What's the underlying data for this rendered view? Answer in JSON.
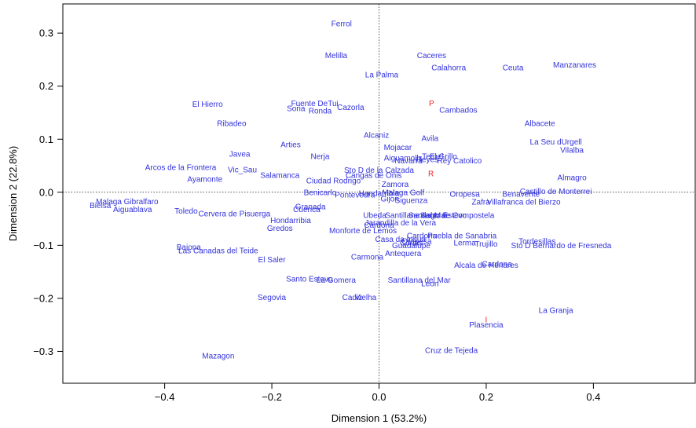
{
  "chart_data": {
    "type": "scatter",
    "xlabel": "Dimension 1 (53.2%)",
    "ylabel": "Dimension 2 (22.8%)",
    "xlim": [
      -0.59,
      0.59
    ],
    "ylim": [
      -0.36,
      0.355
    ],
    "x_ticks": [
      -0.4,
      -0.2,
      0.0,
      0.2,
      0.4
    ],
    "x_tick_labels": [
      "−0.4",
      "−0.2",
      "0.0",
      "0.2",
      "0.4"
    ],
    "y_ticks": [
      -0.3,
      -0.2,
      -0.1,
      0.0,
      0.1,
      0.2,
      0.3
    ],
    "y_tick_labels": [
      "−0.3",
      "−0.2",
      "−0.1",
      "0.0",
      "0.1",
      "0.2",
      "0.3"
    ],
    "reference_lines": [
      {
        "axis": "x",
        "value": 0
      },
      {
        "axis": "y",
        "value": 0
      }
    ],
    "colors": {
      "places": "#3333dd",
      "categories": "#ee2222",
      "axes": "#000000",
      "reference": "#555555"
    },
    "grid": false,
    "legend": "none",
    "series": [
      {
        "color": "#3333dd",
        "points": [
          {
            "label": "Ferrol",
            "x": -0.07,
            "y": 0.318
          },
          {
            "label": "Melilla",
            "x": -0.08,
            "y": 0.258
          },
          {
            "label": "Caceres",
            "x": 0.098,
            "y": 0.258
          },
          {
            "label": "Calahorra",
            "x": 0.13,
            "y": 0.235
          },
          {
            "label": "Ceuta",
            "x": 0.25,
            "y": 0.235
          },
          {
            "label": "Manzanares",
            "x": 0.365,
            "y": 0.24
          },
          {
            "label": "La Palma",
            "x": 0.005,
            "y": 0.222
          },
          {
            "label": "El Hierro",
            "x": -0.32,
            "y": 0.166
          },
          {
            "label": "Fuente DeTui",
            "x": -0.12,
            "y": 0.168
          },
          {
            "label": "Soria",
            "x": -0.155,
            "y": 0.158
          },
          {
            "label": "Ronda",
            "x": -0.11,
            "y": 0.154
          },
          {
            "label": "Cazorla",
            "x": -0.053,
            "y": 0.16
          },
          {
            "label": "Cambados",
            "x": 0.148,
            "y": 0.155
          },
          {
            "label": "Ribadeo",
            "x": -0.275,
            "y": 0.13
          },
          {
            "label": "Albacete",
            "x": 0.3,
            "y": 0.13
          },
          {
            "label": "Alcaniz",
            "x": -0.005,
            "y": 0.108
          },
          {
            "label": "Avila",
            "x": 0.095,
            "y": 0.102
          },
          {
            "label": "La Seu dUrgell",
            "x": 0.33,
            "y": 0.095
          },
          {
            "label": "Arties",
            "x": -0.165,
            "y": 0.09
          },
          {
            "label": "Mojacar",
            "x": 0.035,
            "y": 0.085
          },
          {
            "label": "Vilalba",
            "x": 0.36,
            "y": 0.08
          },
          {
            "label": "Javea",
            "x": -0.26,
            "y": 0.072
          },
          {
            "label": "Nerja",
            "x": -0.11,
            "y": 0.068
          },
          {
            "label": "Aiguamolls",
            "x": 0.045,
            "y": 0.065
          },
          {
            "label": "Teruel",
            "x": 0.1,
            "y": 0.068
          },
          {
            "label": "El Grillo",
            "x": 0.12,
            "y": 0.068
          },
          {
            "label": "Reyes",
            "x": 0.09,
            "y": 0.062
          },
          {
            "label": "Navarra",
            "x": 0.055,
            "y": 0.06
          },
          {
            "label": "Rey Catolico",
            "x": 0.15,
            "y": 0.06
          },
          {
            "label": "Arcos de la Frontera",
            "x": -0.37,
            "y": 0.047
          },
          {
            "label": "Vic_Sau",
            "x": -0.255,
            "y": 0.043
          },
          {
            "label": "Sto D de la Calzada",
            "x": 0.0,
            "y": 0.042
          },
          {
            "label": "Cangas de Onis",
            "x": -0.01,
            "y": 0.032
          },
          {
            "label": "Salamanca",
            "x": -0.185,
            "y": 0.032
          },
          {
            "label": "Ciudad Rodrigo",
            "x": -0.085,
            "y": 0.022
          },
          {
            "label": "Almagro",
            "x": 0.36,
            "y": 0.028
          },
          {
            "label": "Ayamonte",
            "x": -0.325,
            "y": 0.025
          },
          {
            "label": "Zamora",
            "x": 0.03,
            "y": 0.015
          },
          {
            "label": "Benicarlo",
            "x": -0.11,
            "y": 0.0
          },
          {
            "label": "Pontevedra",
            "x": -0.045,
            "y": -0.005
          },
          {
            "label": "Hondarribia",
            "x": 0.0,
            "y": -0.002
          },
          {
            "label": "Malaga Golf",
            "x": 0.045,
            "y": 0.0
          },
          {
            "label": "Oropesa",
            "x": 0.16,
            "y": -0.003
          },
          {
            "label": "Benavente",
            "x": 0.265,
            "y": -0.003
          },
          {
            "label": "Castillo de Monterrei",
            "x": 0.33,
            "y": 0.002
          },
          {
            "label": "Gijon",
            "x": 0.02,
            "y": -0.012
          },
          {
            "label": "Siguenza",
            "x": 0.06,
            "y": -0.015
          },
          {
            "label": "Zafra",
            "x": 0.19,
            "y": -0.018
          },
          {
            "label": "Villafranca del Bierzo",
            "x": 0.27,
            "y": -0.018
          },
          {
            "label": "Malaga Gibralfaro",
            "x": -0.47,
            "y": -0.017
          },
          {
            "label": "Bielsa",
            "x": -0.52,
            "y": -0.025
          },
          {
            "label": "Aiguablava",
            "x": -0.46,
            "y": -0.032
          },
          {
            "label": "Toledo",
            "x": -0.36,
            "y": -0.035
          },
          {
            "label": "Cervera de Pisuerga",
            "x": -0.27,
            "y": -0.04
          },
          {
            "label": "Granada",
            "x": -0.128,
            "y": -0.027
          },
          {
            "label": "Cuenca",
            "x": -0.135,
            "y": -0.032
          },
          {
            "label": "Ubeda",
            "x": -0.008,
            "y": -0.043
          },
          {
            "label": "Santiago de Compostela",
            "x": 0.135,
            "y": -0.043
          },
          {
            "label": "Santillana del Mar",
            "x": 0.07,
            "y": -0.043
          },
          {
            "label": "Santo Estevo",
            "x": 0.12,
            "y": -0.043
          },
          {
            "label": "Hondarribia",
            "x": -0.165,
            "y": -0.053
          },
          {
            "label": "Jarandilla de la Vera",
            "x": 0.04,
            "y": -0.057
          },
          {
            "label": "Cardona",
            "x": -0.0,
            "y": -0.062
          },
          {
            "label": "Gredos",
            "x": -0.185,
            "y": -0.068
          },
          {
            "label": "Monforte de Lemos",
            "x": -0.03,
            "y": -0.072
          },
          {
            "label": "Cardona",
            "x": 0.08,
            "y": -0.082
          },
          {
            "label": "Puebla de Sanabria",
            "x": 0.155,
            "y": -0.082
          },
          {
            "label": "Tordesillas",
            "x": 0.295,
            "y": -0.092
          },
          {
            "label": "Casa da Insua",
            "x": 0.04,
            "y": -0.088
          },
          {
            "label": "Corias",
            "x": 0.06,
            "y": -0.095
          },
          {
            "label": "Lerma",
            "x": 0.16,
            "y": -0.095
          },
          {
            "label": "Trujillo",
            "x": 0.2,
            "y": -0.097
          },
          {
            "label": "Sto D Bernardo de Fresneda",
            "x": 0.34,
            "y": -0.1
          },
          {
            "label": "Oropesa",
            "x": 0.07,
            "y": -0.092
          },
          {
            "label": "Guadalupe",
            "x": 0.06,
            "y": -0.1
          },
          {
            "label": "Baiona",
            "x": -0.355,
            "y": -0.103
          },
          {
            "label": "Las Canadas del Teide",
            "x": -0.3,
            "y": -0.11
          },
          {
            "label": "Antequera",
            "x": 0.045,
            "y": -0.115
          },
          {
            "label": "Carmona",
            "x": -0.022,
            "y": -0.122
          },
          {
            "label": "El Saler",
            "x": -0.2,
            "y": -0.127
          },
          {
            "label": "Alcala de Henares",
            "x": 0.2,
            "y": -0.137
          },
          {
            "label": "Cardona",
            "x": 0.22,
            "y": -0.135
          },
          {
            "label": "Santo Estevo",
            "x": -0.13,
            "y": -0.163
          },
          {
            "label": "La Gomera",
            "x": -0.08,
            "y": -0.165
          },
          {
            "label": "Santillana del Mar",
            "x": 0.075,
            "y": -0.165
          },
          {
            "label": "Leon",
            "x": 0.095,
            "y": -0.172
          },
          {
            "label": "Segovia",
            "x": -0.2,
            "y": -0.198
          },
          {
            "label": "Cadiz",
            "x": -0.05,
            "y": -0.198
          },
          {
            "label": "Vielha",
            "x": -0.025,
            "y": -0.198
          },
          {
            "label": "La Granja",
            "x": 0.33,
            "y": -0.222
          },
          {
            "label": "Plasencia",
            "x": 0.2,
            "y": -0.25
          },
          {
            "label": "Cruz de Tejeda",
            "x": 0.135,
            "y": -0.298
          },
          {
            "label": "Mazagon",
            "x": -0.3,
            "y": -0.308
          }
        ]
      },
      {
        "color": "#ee2222",
        "points": [
          {
            "label": "P",
            "x": 0.098,
            "y": 0.168
          },
          {
            "label": "R",
            "x": 0.097,
            "y": 0.035
          },
          {
            "label": "I",
            "x": 0.2,
            "y": -0.24
          }
        ]
      }
    ]
  }
}
